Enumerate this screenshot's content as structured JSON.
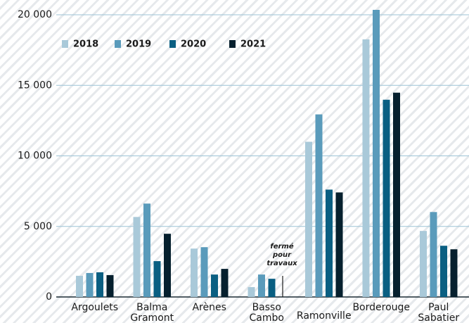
{
  "chart_data": {
    "type": "bar",
    "categories": [
      "Argoulets",
      "Balma Gramont",
      "Arènes",
      "Basso Cambo",
      "Ramonville",
      "Borderouge",
      "Paul Sabatier"
    ],
    "series": [
      {
        "name": "2018",
        "color": "#a9c9d9",
        "values": [
          1500,
          5670,
          3430,
          700,
          11000,
          18260,
          4680
        ]
      },
      {
        "name": "2019",
        "color": "#5a9bbb",
        "values": [
          1700,
          6620,
          3530,
          1590,
          12940,
          20350,
          6020
        ]
      },
      {
        "name": "2020",
        "color": "#0a5f82",
        "values": [
          1750,
          2540,
          1590,
          1290,
          7610,
          13980,
          3630
        ]
      },
      {
        "name": "2021",
        "color": "#06202e",
        "values": [
          1550,
          4480,
          1990,
          null,
          7410,
          14480,
          3380
        ]
      }
    ],
    "ylim": [
      0,
      20400
    ],
    "yticks": [
      0,
      {
        "value": 5000,
        "label": "5 000"
      },
      {
        "value": 10000,
        "label": "10 000"
      },
      {
        "value": 15000,
        "label": "15 000"
      },
      {
        "value": 20000,
        "label": "20 000"
      }
    ],
    "grid": true,
    "legend": "top-left",
    "annotation": "fermé pour travaux"
  }
}
